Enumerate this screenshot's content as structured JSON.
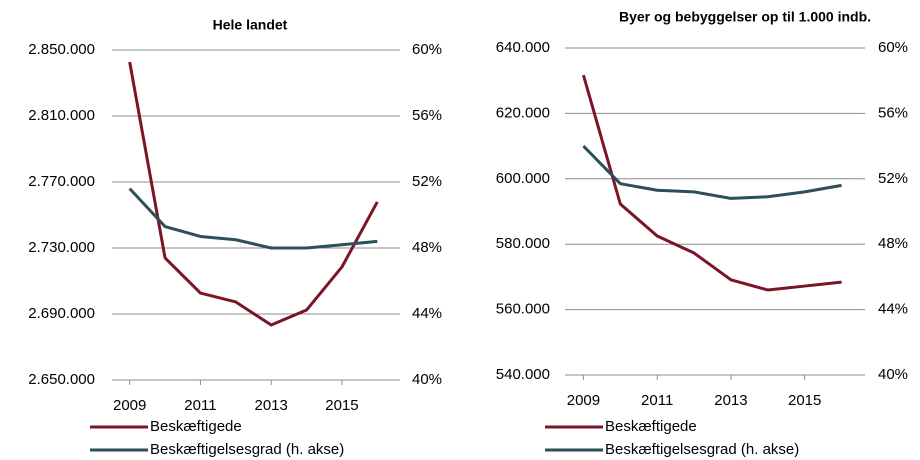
{
  "chart_data": [
    {
      "type": "line",
      "title": "Hele landet",
      "x": [
        2009,
        2010,
        2011,
        2012,
        2013,
        2014,
        2015,
        2016
      ],
      "xlim": [
        2008.5,
        2016.5
      ],
      "xticks": [
        2009,
        2011,
        2013,
        2015
      ],
      "ylim": [
        2650000,
        2850000
      ],
      "yticks": [
        {
          "value": 2650000,
          "label": "2.650.000"
        },
        {
          "value": 2690000,
          "label": "2.690.000"
        },
        {
          "value": 2730000,
          "label": "2.730.000"
        },
        {
          "value": 2770000,
          "label": "2.770.000"
        },
        {
          "value": 2810000,
          "label": "2.810.000"
        },
        {
          "value": 2850000,
          "label": "2.850.000"
        }
      ],
      "y2lim": [
        40,
        60
      ],
      "y2ticks": [
        {
          "value": 40,
          "label": "40%"
        },
        {
          "value": 44,
          "label": "44%"
        },
        {
          "value": 48,
          "label": "48%"
        },
        {
          "value": 52,
          "label": "52%"
        },
        {
          "value": 56,
          "label": "56%"
        },
        {
          "value": 60,
          "label": "60%"
        }
      ],
      "grid": true,
      "series": [
        {
          "name": "Beskæftigede",
          "color": "#7b1526",
          "values": [
            2842700,
            2724000,
            2702700,
            2697300,
            2683300,
            2692400,
            2718500,
            2757900
          ]
        },
        {
          "name": "Beskæftigelsesgrad (h. akse)",
          "color": "#2c4f5a",
          "axis": "y2",
          "values": [
            51.6,
            49.3,
            48.7,
            48.5,
            48.0,
            48.0,
            48.2,
            48.4
          ]
        }
      ]
    },
    {
      "type": "line",
      "title": "Byer og bebyggelser op til 1.000 indb.",
      "x": [
        2009,
        2010,
        2011,
        2012,
        2013,
        2014,
        2015,
        2016
      ],
      "xlim": [
        2008.5,
        2016.5
      ],
      "xticks": [
        2009,
        2011,
        2013,
        2015
      ],
      "ylim": [
        540000,
        640000
      ],
      "yticks": [
        {
          "value": 540000,
          "label": "540.000"
        },
        {
          "value": 560000,
          "label": "560.000"
        },
        {
          "value": 580000,
          "label": "580.000"
        },
        {
          "value": 600000,
          "label": "600.000"
        },
        {
          "value": 620000,
          "label": "620.000"
        },
        {
          "value": 640000,
          "label": "640.000"
        }
      ],
      "y2lim": [
        40,
        60
      ],
      "y2ticks": [
        {
          "value": 40,
          "label": "40%"
        },
        {
          "value": 44,
          "label": "44%"
        },
        {
          "value": 48,
          "label": "48%"
        },
        {
          "value": 52,
          "label": "52%"
        },
        {
          "value": 56,
          "label": "56%"
        },
        {
          "value": 60,
          "label": "60%"
        }
      ],
      "grid": true,
      "series": [
        {
          "name": "Beskæftigede",
          "color": "#7b1526",
          "values": [
            631700,
            592300,
            582500,
            577300,
            569100,
            566000,
            567200,
            568400
          ]
        },
        {
          "name": "Beskæftigelsesgrad (h. akse)",
          "color": "#2c4f5a",
          "axis": "y2",
          "values": [
            54.0,
            51.7,
            51.3,
            51.2,
            50.8,
            50.9,
            51.2,
            51.6
          ]
        }
      ]
    }
  ]
}
